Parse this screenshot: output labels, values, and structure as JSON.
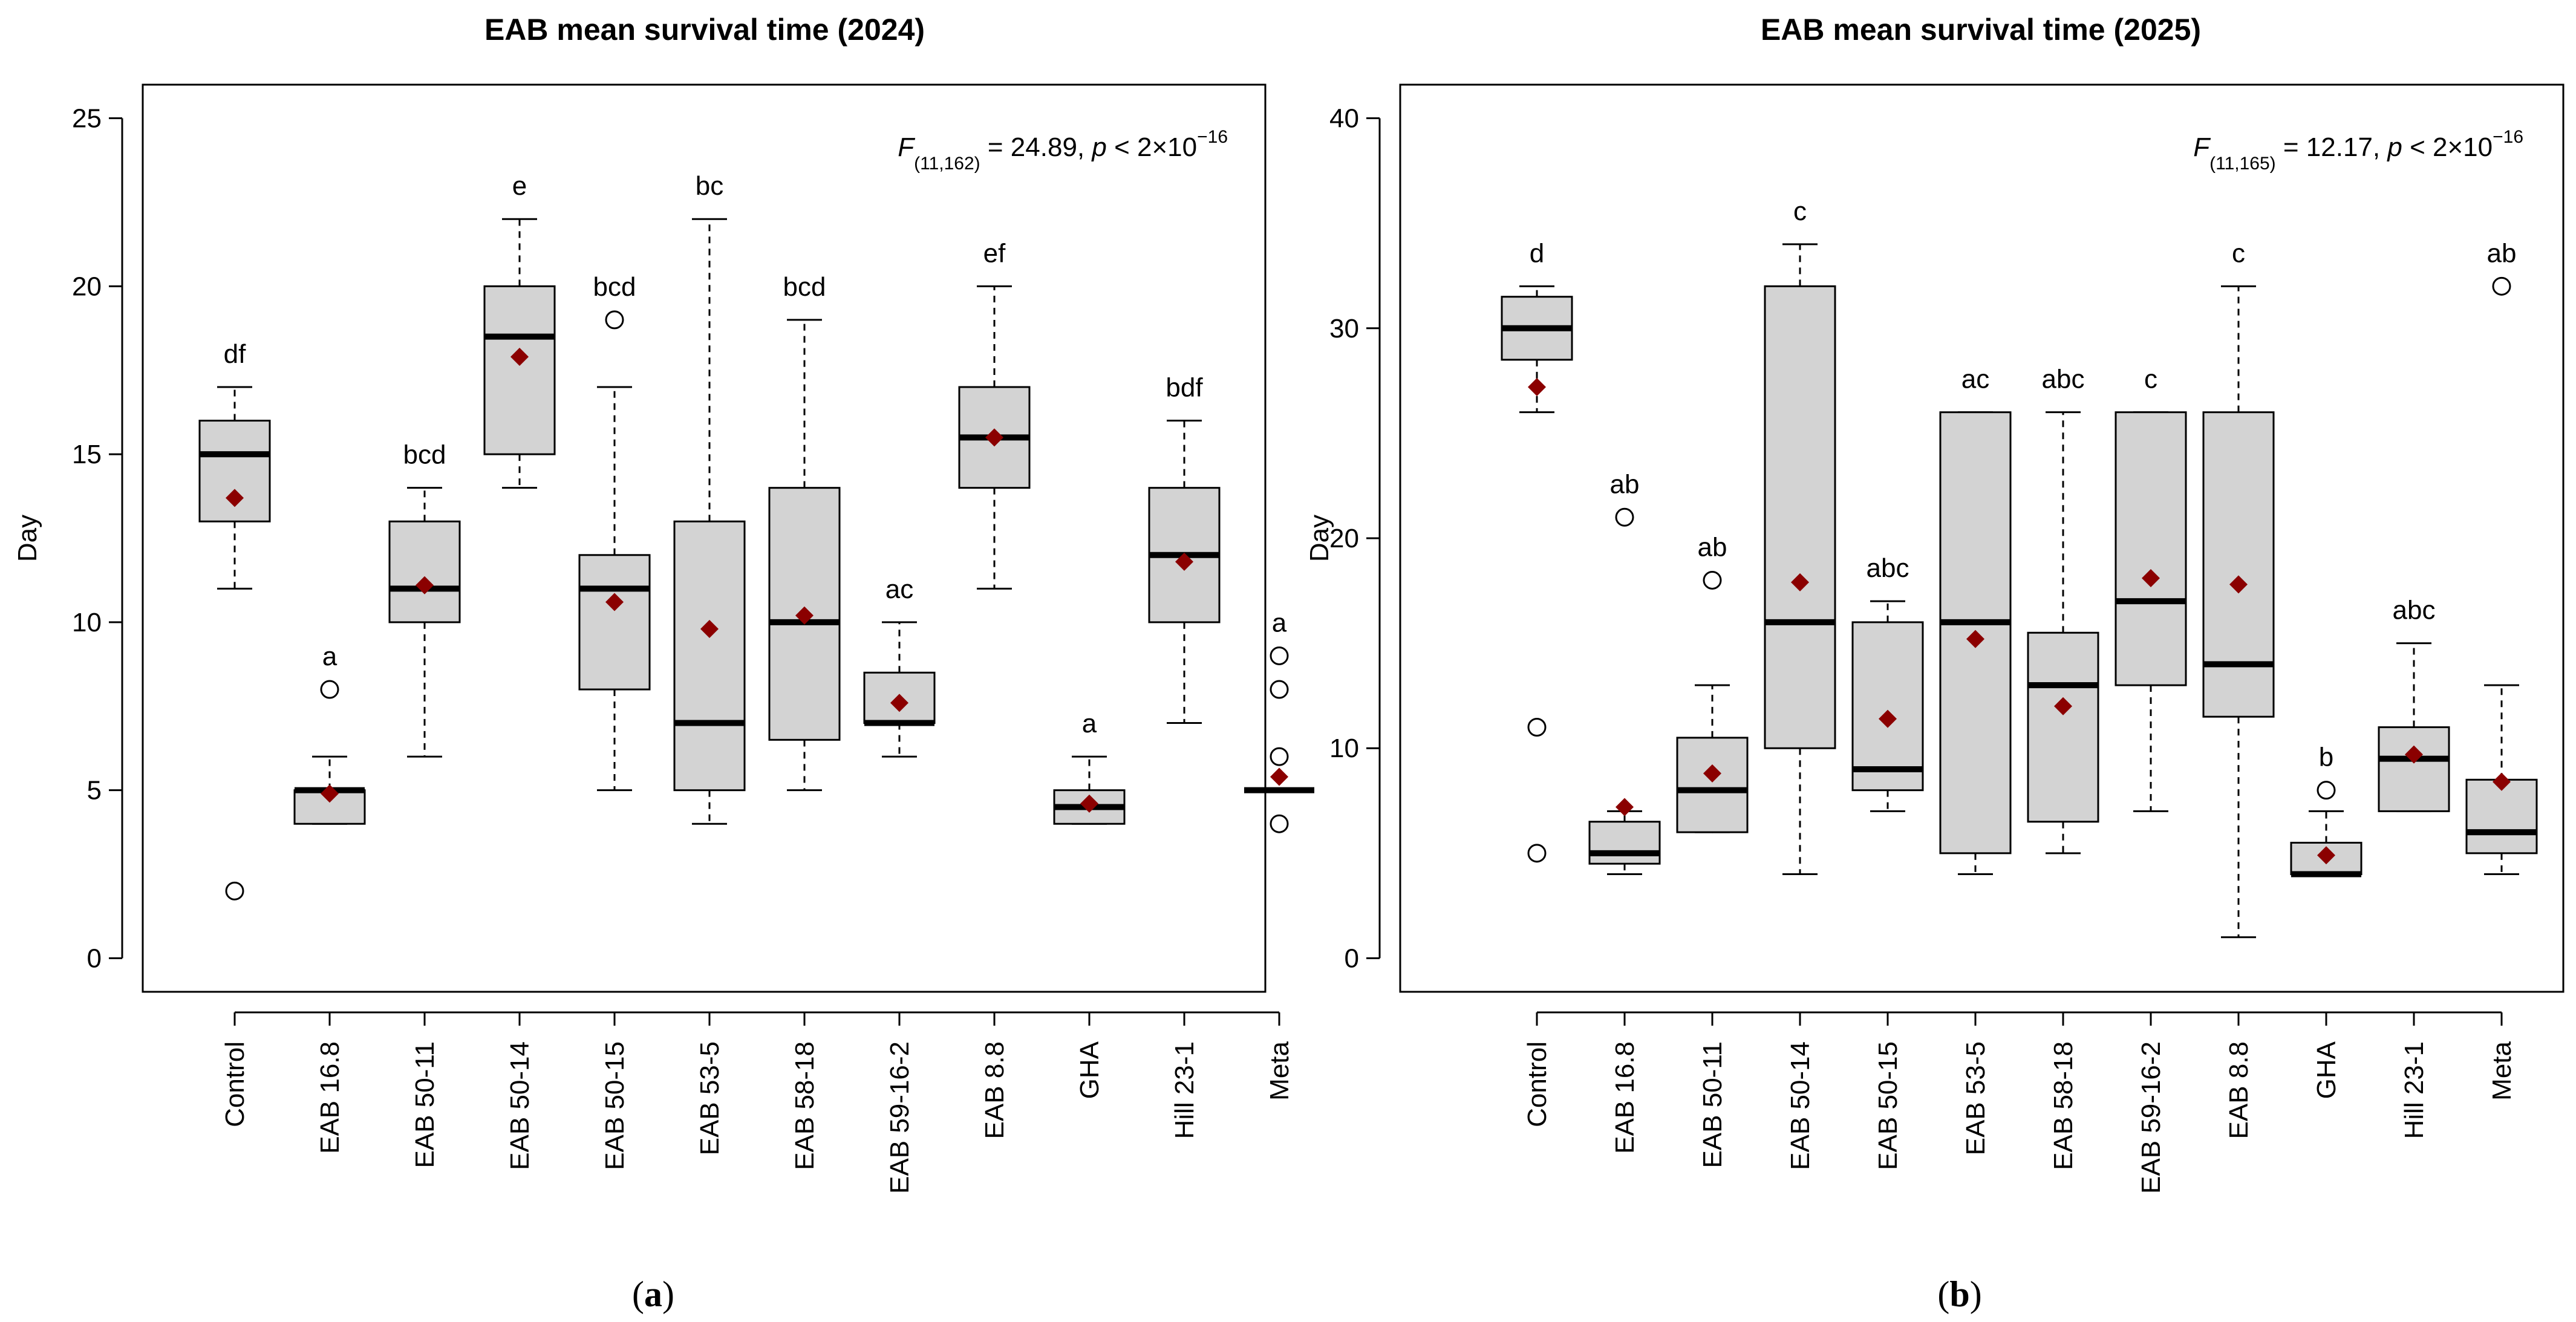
{
  "chart_data": [
    {
      "type": "box",
      "title": "EAB mean survival time (2024)",
      "ylabel": "Day",
      "xlabel": "",
      "ylim": [
        -1,
        26
      ],
      "yticks": [
        0,
        5,
        10,
        15,
        20,
        25
      ],
      "stat_text": {
        "F": "F",
        "df": "(11,162)",
        "mid": " = 24.89, ",
        "p": "p",
        "rest": " < 2×10",
        "exp": "−16"
      },
      "panel_label": {
        "open": "(",
        "letter": "a",
        "close": ")"
      },
      "groups": [
        {
          "name": "Control",
          "q1": 13,
          "median": 15,
          "q3": 16,
          "wlo": 11,
          "whi": 17,
          "mean": 13.7,
          "outliers": [
            2
          ],
          "letter": "df"
        },
        {
          "name": "EAB 16.8",
          "q1": 4,
          "median": 5,
          "q3": 5,
          "wlo": 4,
          "whi": 6,
          "mean": 4.9,
          "outliers": [
            8
          ],
          "letter": "a"
        },
        {
          "name": "EAB 50-11",
          "q1": 10,
          "median": 11,
          "q3": 13,
          "wlo": 6,
          "whi": 14,
          "mean": 11.1,
          "outliers": [],
          "letter": "bcd"
        },
        {
          "name": "EAB 50-14",
          "q1": 15,
          "median": 18.5,
          "q3": 20,
          "wlo": 14,
          "whi": 22,
          "mean": 17.9,
          "outliers": [],
          "letter": "e"
        },
        {
          "name": "EAB 50-15",
          "q1": 8,
          "median": 11,
          "q3": 12,
          "wlo": 5,
          "whi": 17,
          "mean": 10.6,
          "outliers": [
            19
          ],
          "letter": "bcd"
        },
        {
          "name": "EAB 53-5",
          "q1": 5,
          "median": 7,
          "q3": 13,
          "wlo": 4,
          "whi": 22,
          "mean": 9.8,
          "outliers": [],
          "letter": "bc"
        },
        {
          "name": "EAB 58-18",
          "q1": 6.5,
          "median": 10,
          "q3": 14,
          "wlo": 5,
          "whi": 19,
          "mean": 10.2,
          "outliers": [],
          "letter": "bcd"
        },
        {
          "name": "EAB 59-16-2",
          "q1": 7,
          "median": 7,
          "q3": 8.5,
          "wlo": 6,
          "whi": 10,
          "mean": 7.6,
          "outliers": [],
          "letter": "ac"
        },
        {
          "name": "EAB 8.8",
          "q1": 14,
          "median": 15.5,
          "q3": 17,
          "wlo": 11,
          "whi": 20,
          "mean": 15.5,
          "outliers": [],
          "letter": "ef"
        },
        {
          "name": "GHA",
          "q1": 4,
          "median": 4.5,
          "q3": 5,
          "wlo": 4,
          "whi": 6,
          "mean": 4.6,
          "outliers": [],
          "letter": "a"
        },
        {
          "name": "Hill 23-1",
          "q1": 10,
          "median": 12,
          "q3": 14,
          "wlo": 7,
          "whi": 16,
          "mean": 11.8,
          "outliers": [],
          "letter": "bdf"
        },
        {
          "name": "Meta",
          "q1": 5,
          "median": 5,
          "q3": 5,
          "wlo": 5,
          "whi": 5,
          "mean": 5.4,
          "outliers": [
            4,
            6,
            8,
            9
          ],
          "letter": "a"
        }
      ]
    },
    {
      "type": "box",
      "title": "EAB mean survival time (2025)",
      "ylabel": "Day",
      "xlabel": "",
      "ylim": [
        -1.6,
        41.6
      ],
      "yticks": [
        0,
        10,
        20,
        30,
        40
      ],
      "stat_text": {
        "F": "F",
        "df": "(11,165)",
        "mid": " = 12.17, ",
        "p": "p",
        "rest": " < 2×10",
        "exp": "−16"
      },
      "panel_label": {
        "open": "(",
        "letter": "b",
        "close": ")"
      },
      "groups": [
        {
          "name": "Control",
          "q1": 28.5,
          "median": 30,
          "q3": 31.5,
          "wlo": 26,
          "whi": 32,
          "mean": 27.2,
          "outliers": [
            5,
            11
          ],
          "letter": "d"
        },
        {
          "name": "EAB 16.8",
          "q1": 4.5,
          "median": 5,
          "q3": 6.5,
          "wlo": 4,
          "whi": 7,
          "mean": 7.2,
          "outliers": [
            21
          ],
          "letter": "ab"
        },
        {
          "name": "EAB 50-11",
          "q1": 6,
          "median": 8,
          "q3": 10.5,
          "wlo": 6,
          "whi": 13,
          "mean": 8.8,
          "outliers": [
            18
          ],
          "letter": "ab"
        },
        {
          "name": "EAB 50-14",
          "q1": 10,
          "median": 16,
          "q3": 32,
          "wlo": 4,
          "whi": 34,
          "mean": 17.9,
          "outliers": [],
          "letter": "c"
        },
        {
          "name": "EAB 50-15",
          "q1": 8,
          "median": 9,
          "q3": 16,
          "wlo": 7,
          "whi": 17,
          "mean": 11.4,
          "outliers": [],
          "letter": "abc"
        },
        {
          "name": "EAB 53-5",
          "q1": 5,
          "median": 16,
          "q3": 26,
          "wlo": 4,
          "whi": 26,
          "mean": 15.2,
          "outliers": [],
          "letter": "ac"
        },
        {
          "name": "EAB 58-18",
          "q1": 6.5,
          "median": 13,
          "q3": 15.5,
          "wlo": 5,
          "whi": 26,
          "mean": 12,
          "outliers": [],
          "letter": "abc"
        },
        {
          "name": "EAB 59-16-2",
          "q1": 13,
          "median": 17,
          "q3": 26,
          "wlo": 7,
          "whi": 26,
          "mean": 18.1,
          "outliers": [],
          "letter": "c"
        },
        {
          "name": "EAB 8.8",
          "q1": 11.5,
          "median": 14,
          "q3": 26,
          "wlo": 1,
          "whi": 32,
          "mean": 17.8,
          "outliers": [],
          "letter": "c"
        },
        {
          "name": "GHA",
          "q1": 4,
          "median": 4,
          "q3": 5.5,
          "wlo": 4,
          "whi": 7,
          "mean": 4.9,
          "outliers": [
            8
          ],
          "letter": "b"
        },
        {
          "name": "Hill 23-1",
          "q1": 7,
          "median": 9.5,
          "q3": 11,
          "wlo": 7,
          "whi": 15,
          "mean": 9.7,
          "outliers": [],
          "letter": "abc"
        },
        {
          "name": "Meta",
          "q1": 5,
          "median": 6,
          "q3": 8.5,
          "wlo": 4,
          "whi": 13,
          "mean": 8.4,
          "outliers": [
            32
          ],
          "letter": "ab"
        }
      ]
    }
  ]
}
